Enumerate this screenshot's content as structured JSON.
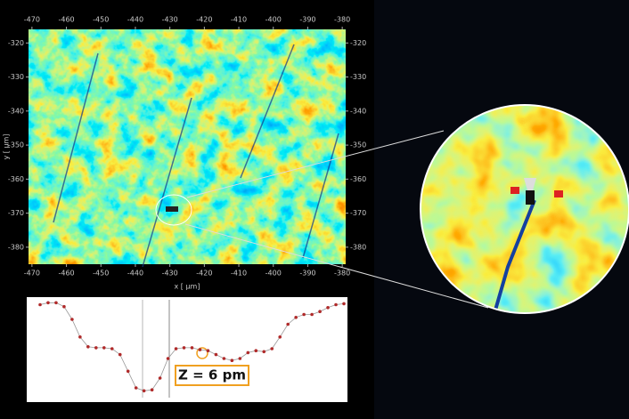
{
  "chart_data": [
    {
      "type": "heatmap",
      "xlabel": "x [ µm]",
      "ylabel": "y [ µm]",
      "xlim": [
        -471,
        -379
      ],
      "ylim": [
        -385,
        -316
      ],
      "xticks": [
        -470,
        -460,
        -450,
        -440,
        -430,
        -420,
        -410,
        -400,
        -390,
        -380
      ],
      "yticks": [
        -320,
        -330,
        -340,
        -350,
        -360,
        -370,
        -380
      ]
    },
    {
      "type": "line",
      "color": "#b02a2a",
      "ylim": [
        0,
        100
      ],
      "annotation": "Z = 6 pm",
      "values": [
        95,
        97,
        97,
        93,
        80,
        62,
        52,
        51,
        51,
        50,
        44,
        27,
        10,
        7,
        8,
        20,
        40,
        50,
        51,
        51,
        49,
        48,
        44,
        40,
        38,
        40,
        46,
        48,
        47,
        50,
        62,
        75,
        82,
        85,
        85,
        88,
        92,
        95,
        96
      ]
    }
  ]
}
